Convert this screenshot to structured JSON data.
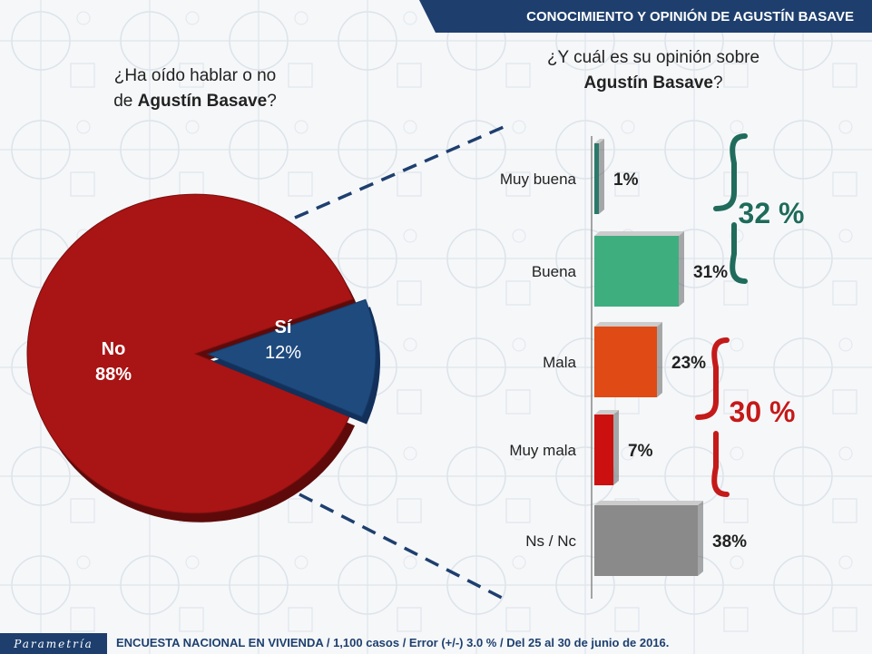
{
  "header": {
    "title": "CONOCIMIENTO Y OPINIÓN DE AGUSTÍN BASAVE"
  },
  "left_question": {
    "line1": "¿Ha oído hablar o no",
    "line2_prefix": "de ",
    "name": "Agustín Basave",
    "suffix": "?"
  },
  "right_question": {
    "line1": "¿Y cuál es su opinión sobre",
    "name": "Agustín Basave",
    "suffix": "?"
  },
  "footer": {
    "logo": "Parametría",
    "text": "ENCUESTA NACIONAL EN VIVIENDA / 1,100 casos / Error (+/-) 3.0 % / Del 25 al 30 de junio de 2016."
  },
  "groups": {
    "positive": "32 %",
    "negative": "30 %"
  },
  "colors": {
    "no": "#a91414",
    "si": "#1f4a7e",
    "muy_buena": "#2a7a6a",
    "buena": "#3fae7f",
    "mala": "#e04a14",
    "muy_mala": "#cc1010",
    "nsnc": "#8a8a8a",
    "positive_brace": "#1f6b5c",
    "negative_brace": "#c41a1a"
  },
  "chart_data": [
    {
      "type": "pie",
      "categories": [
        "No",
        "Sí"
      ],
      "values": [
        88,
        12
      ],
      "labels": [
        "88%",
        "12%"
      ]
    },
    {
      "type": "bar",
      "orientation": "horizontal",
      "categories": [
        "Muy buena",
        "Buena",
        "Mala",
        "Muy mala",
        "Ns / Nc"
      ],
      "values": [
        1,
        31,
        23,
        7,
        38
      ],
      "labels": [
        "1%",
        "31%",
        "23%",
        "7%",
        "38%"
      ]
    }
  ]
}
